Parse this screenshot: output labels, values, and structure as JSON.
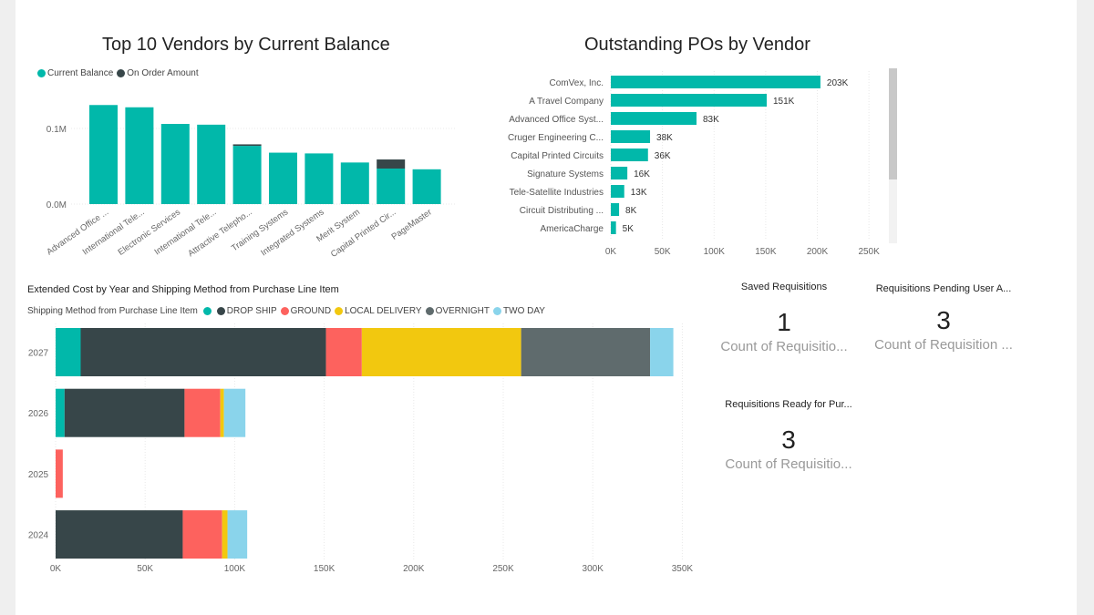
{
  "colors": {
    "teal": "#01B8AA",
    "dark": "#374649",
    "red": "#FD625E",
    "yellow": "#F2C80F",
    "gray": "#5F6B6D",
    "lightblue": "#8AD4EB",
    "grid": "#e8e8e8",
    "scroll_track": "#f2f2f2",
    "scroll_thumb": "#c8c8c8"
  },
  "vendors_balance": {
    "title": "Top 10 Vendors by Current Balance",
    "legend": [
      {
        "name": "Current Balance",
        "color": "#01B8AA"
      },
      {
        "name": "On Order Amount",
        "color": "#374649"
      }
    ],
    "ytick_labels": [
      "0.0M",
      "0.1M"
    ]
  },
  "outstanding_pos": {
    "title": "Outstanding POs by Vendor"
  },
  "extended_cost": {
    "title": "Extended Cost by Year and Shipping Method from Purchase Line Item",
    "legend_title": "Shipping Method from Purchase Line Item",
    "legend": [
      {
        "name": "",
        "color": "#01B8AA"
      },
      {
        "name": "DROP SHIP",
        "color": "#374649"
      },
      {
        "name": "GROUND",
        "color": "#FD625E"
      },
      {
        "name": "LOCAL DELIVERY",
        "color": "#F2C80F"
      },
      {
        "name": "OVERNIGHT",
        "color": "#5F6B6D"
      },
      {
        "name": "TWO DAY",
        "color": "#8AD4EB"
      }
    ]
  },
  "cards": {
    "saved": {
      "title": "Saved Requisitions",
      "value": "1",
      "label": "Count of Requisitio..."
    },
    "pending": {
      "title": "Requisitions Pending User A...",
      "value": "3",
      "label": "Count of Requisition ..."
    },
    "ready": {
      "title": "Requisitions Ready for Pur...",
      "value": "3",
      "label": "Count of Requisitio..."
    }
  },
  "chart_data": [
    {
      "type": "bar",
      "title": "Top 10 Vendors by Current Balance",
      "categories": [
        "Advanced Office ...",
        "International Tele...",
        "Electronic Services",
        "International Tele...",
        "Attractive Telepho...",
        "Training Systems",
        "Integrated Systems",
        "Merit System",
        "Capital Printed Cir...",
        "PageMaster"
      ],
      "series": [
        {
          "name": "Current Balance",
          "values": [
            131000,
            128000,
            106000,
            105000,
            77000,
            68000,
            67000,
            55000,
            47000,
            46000
          ]
        },
        {
          "name": "On Order Amount",
          "values": [
            0,
            0,
            0,
            0,
            2000,
            0,
            0,
            0,
            12000,
            0
          ]
        }
      ],
      "ylim": [
        0,
        160000
      ],
      "yticks": [
        0,
        100000
      ],
      "legend": "top-left",
      "stacked": true
    },
    {
      "type": "bar",
      "orientation": "horizontal",
      "title": "Outstanding POs by Vendor",
      "categories": [
        "ComVex, Inc.",
        "A Travel Company",
        "Advanced Office Syst...",
        "Cruger Engineering C...",
        "Capital Printed Circuits",
        "Signature Systems",
        "Tele-Satellite Industries",
        "Circuit Distributing ...",
        "AmericaCharge"
      ],
      "values": [
        203,
        151,
        83,
        38,
        36,
        16,
        13,
        8,
        5
      ],
      "data_labels": [
        "203K",
        "151K",
        "83K",
        "38K",
        "36K",
        "16K",
        "13K",
        "8K",
        "5K"
      ],
      "xticks": [
        0,
        50,
        100,
        150,
        200,
        250
      ],
      "xtick_labels": [
        "0K",
        "50K",
        "100K",
        "150K",
        "200K",
        "250K"
      ],
      "xlim": [
        0,
        250
      ]
    },
    {
      "type": "bar",
      "orientation": "horizontal",
      "stacked": true,
      "title": "Extended Cost by Year and Shipping Method from Purchase Line Item",
      "categories": [
        "2027",
        "2026",
        "2025",
        "2024"
      ],
      "series": [
        {
          "name": "",
          "values": [
            14,
            5,
            0,
            0
          ]
        },
        {
          "name": "DROP SHIP",
          "values": [
            137,
            67,
            0,
            71
          ]
        },
        {
          "name": "GROUND",
          "values": [
            20,
            20,
            4,
            22
          ]
        },
        {
          "name": "LOCAL DELIVERY",
          "values": [
            89,
            2,
            0,
            3
          ]
        },
        {
          "name": "OVERNIGHT",
          "values": [
            72,
            0,
            0,
            0
          ]
        },
        {
          "name": "TWO DAY",
          "values": [
            13,
            12,
            0,
            11
          ]
        }
      ],
      "xticks": [
        0,
        50,
        100,
        150,
        200,
        250,
        300,
        350
      ],
      "xtick_labels": [
        "0K",
        "50K",
        "100K",
        "150K",
        "200K",
        "250K",
        "300K",
        "350K"
      ],
      "xlim": [
        0,
        350
      ]
    }
  ]
}
